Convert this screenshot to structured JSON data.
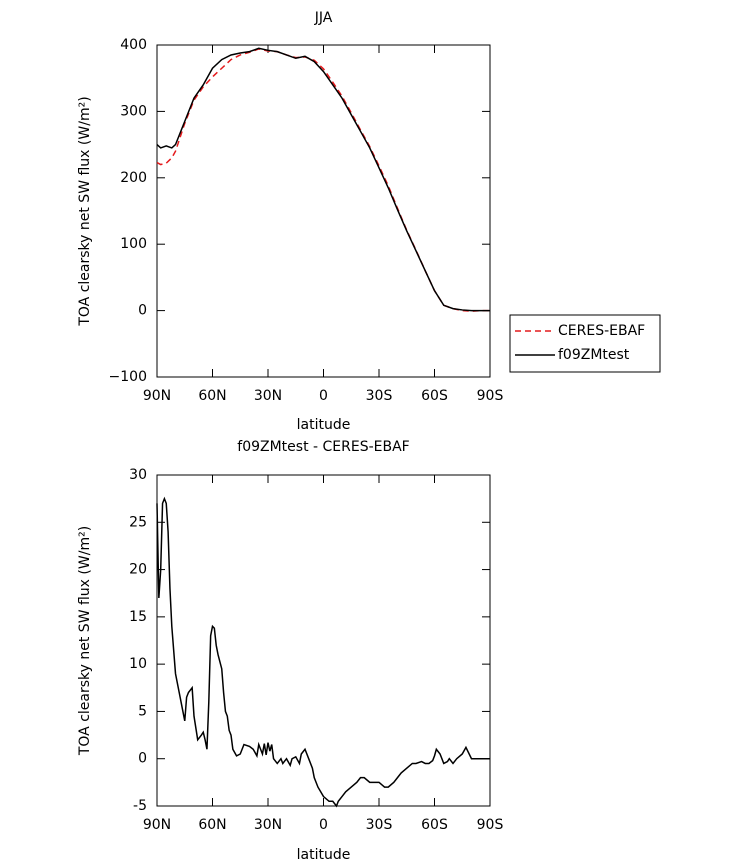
{
  "chart_data": [
    {
      "type": "line",
      "title": "JJA",
      "x_label": "latitude",
      "y_label": "TOA clearsky net SW flux (W/m²)",
      "x": [
        90,
        88,
        85,
        82,
        80,
        75,
        70,
        65,
        60,
        55,
        50,
        45,
        40,
        35,
        30,
        25,
        20,
        15,
        10,
        5,
        0,
        -5,
        -10,
        -15,
        -20,
        -25,
        -30,
        -35,
        -40,
        -45,
        -50,
        -55,
        -60,
        -65,
        -70,
        -75,
        -80,
        -85,
        -90
      ],
      "series": [
        {
          "name": "CERES-EBAF",
          "color": "#e41a1c",
          "style": "dashed",
          "values": [
            223,
            220,
            222,
            230,
            240,
            282,
            317,
            337,
            352,
            365,
            378,
            385,
            389,
            394,
            391,
            390,
            385,
            381,
            382,
            377,
            364,
            344,
            323,
            298,
            272,
            247,
            218,
            188,
            154,
            121,
            91,
            60,
            30,
            8,
            3,
            0,
            -1,
            0,
            0
          ]
        },
        {
          "name": "f09ZMtest",
          "color": "#000000",
          "style": "solid",
          "values": [
            250,
            245,
            248,
            245,
            250,
            285,
            320,
            340,
            365,
            378,
            385,
            388,
            390,
            395,
            392,
            390,
            385,
            380,
            383,
            375,
            360,
            340,
            320,
            295,
            270,
            245,
            215,
            185,
            152,
            120,
            90,
            60,
            30,
            8,
            3,
            1,
            0,
            0,
            0
          ]
        }
      ],
      "xlim": [
        90,
        -90
      ],
      "xticks": [
        {
          "value": 90,
          "label": "90N"
        },
        {
          "value": 60,
          "label": "60N"
        },
        {
          "value": 30,
          "label": "30N"
        },
        0,
        {
          "value": -30,
          "label": "30S"
        },
        {
          "value": -60,
          "label": "60S"
        },
        {
          "value": -90,
          "label": "90S"
        }
      ],
      "ylim": [
        -100,
        400
      ],
      "yticks": [
        {
          "value": -100,
          "label": "−100"
        },
        0,
        100,
        200,
        300,
        400
      ],
      "legend": "right"
    },
    {
      "type": "line",
      "title": "f09ZMtest - CERES-EBAF",
      "x_label": "latitude",
      "y_label": "TOA clearsky net SW flux (W/m²)",
      "x": [
        90,
        89,
        88,
        87,
        86,
        85,
        84,
        83,
        82,
        80,
        78,
        76,
        75,
        74,
        73,
        71,
        70,
        68,
        66,
        65,
        64,
        63,
        62,
        61,
        60,
        59,
        58,
        57,
        55,
        54,
        53,
        52,
        51,
        50,
        49,
        47,
        45,
        43,
        40,
        38,
        36,
        35,
        33,
        32,
        31,
        30,
        29,
        28,
        27,
        25,
        23,
        22,
        20,
        18,
        17,
        15,
        13,
        12,
        10,
        8,
        6,
        5,
        3,
        0,
        -3,
        -5,
        -7,
        -8,
        -10,
        -12,
        -15,
        -18,
        -20,
        -22,
        -25,
        -28,
        -30,
        -33,
        -35,
        -38,
        -40,
        -42,
        -45,
        -48,
        -50,
        -53,
        -55,
        -57,
        -59,
        -60,
        -61,
        -63,
        -65,
        -67,
        -68,
        -70,
        -72,
        -75,
        -77,
        -78,
        -80,
        -85,
        -90
      ],
      "series": [
        {
          "color": "#000000",
          "style": "solid",
          "values": [
            27,
            17,
            20,
            27,
            27.5,
            27,
            24,
            18,
            14,
            9,
            7,
            5,
            4,
            6.5,
            7,
            7.5,
            4.5,
            2,
            2.5,
            2.8,
            2,
            1,
            6,
            13,
            14,
            13.8,
            12,
            11,
            9.5,
            7,
            5,
            4.5,
            3,
            2.5,
            1,
            0.3,
            0.5,
            1.5,
            1.3,
            1,
            0.3,
            1.5,
            0.5,
            1.6,
            0.4,
            1.7,
            0.8,
            1.5,
            0,
            -0.5,
            0,
            -0.5,
            0,
            -0.7,
            0,
            0.2,
            -0.5,
            0.5,
            1,
            0,
            -1,
            -2,
            -3,
            -4,
            -4.5,
            -4.5,
            -5,
            -4.5,
            -4,
            -3.5,
            -3,
            -2.5,
            -2,
            -2,
            -2.5,
            -2.5,
            -2.5,
            -3,
            -3,
            -2.5,
            -2,
            -1.5,
            -1,
            -0.5,
            -0.5,
            -0.3,
            -0.5,
            -0.5,
            -0.2,
            0.3,
            1,
            0.5,
            -0.5,
            -0.3,
            0,
            -0.5,
            0,
            0.5,
            1.2,
            0.8,
            0,
            0,
            0
          ]
        }
      ],
      "xlim": [
        90,
        -90
      ],
      "xticks": [
        {
          "value": 90,
          "label": "90N"
        },
        {
          "value": 60,
          "label": "60N"
        },
        {
          "value": 30,
          "label": "30N"
        },
        0,
        {
          "value": -30,
          "label": "30S"
        },
        {
          "value": -60,
          "label": "60S"
        },
        {
          "value": -90,
          "label": "90S"
        }
      ],
      "ylim": [
        -5,
        30
      ],
      "yticks": [
        -5,
        0,
        5,
        10,
        15,
        20,
        25,
        30
      ]
    }
  ]
}
